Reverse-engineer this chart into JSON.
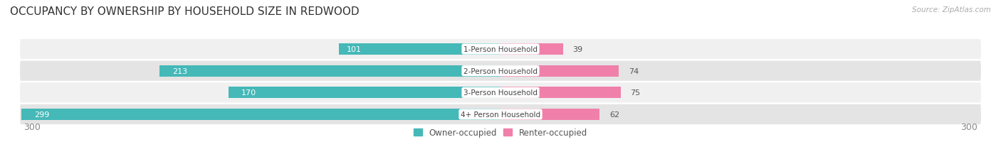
{
  "title": "OCCUPANCY BY OWNERSHIP BY HOUSEHOLD SIZE IN REDWOOD",
  "source": "Source: ZipAtlas.com",
  "categories": [
    "1-Person Household",
    "2-Person Household",
    "3-Person Household",
    "4+ Person Household"
  ],
  "owner_values": [
    101,
    213,
    170,
    299
  ],
  "renter_values": [
    39,
    74,
    75,
    62
  ],
  "owner_color": "#45b8b8",
  "renter_color": "#f080aa",
  "row_bg_odd": "#f0f0f0",
  "row_bg_even": "#e4e4e4",
  "max_value": 300,
  "axis_left_label": "300",
  "axis_right_label": "300",
  "legend_owner": "Owner-occupied",
  "legend_renter": "Renter-occupied",
  "title_fontsize": 11,
  "label_fontsize": 8,
  "tick_fontsize": 9,
  "bg_color": "#ffffff",
  "center_label_bg": "#ffffff"
}
